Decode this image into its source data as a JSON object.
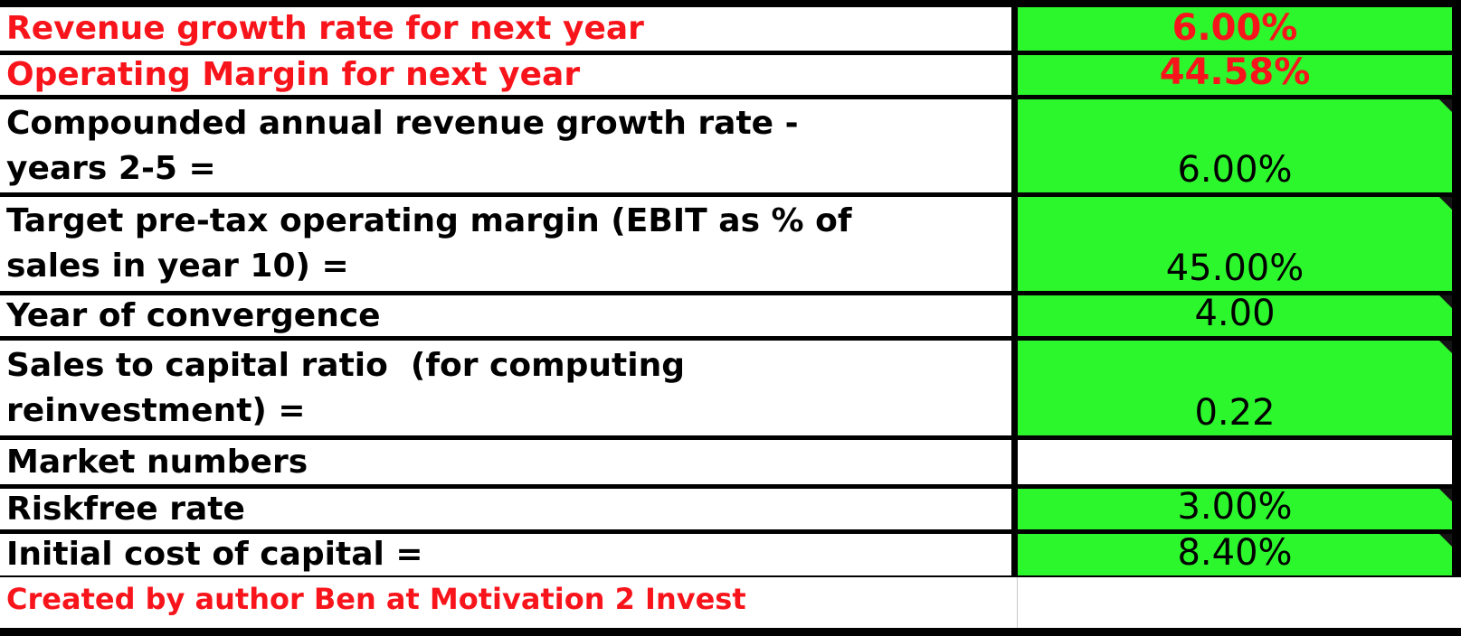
{
  "table": {
    "rows": [
      {
        "label": "Revenue growth rate for next year",
        "value": "6.00%"
      },
      {
        "label": "Operating Margin for next year",
        "value": "44.58%"
      },
      {
        "label": "Compounded annual revenue growth rate -\nyears 2-5 =",
        "value": "6.00%"
      },
      {
        "label": "Target pre-tax operating margin (EBIT as % of\nsales in year 10) =",
        "value": "45.00%"
      },
      {
        "label": "Year of convergence",
        "value": "4.00"
      },
      {
        "label": "Sales to capital ratio  (for computing\nreinvestment) =",
        "value": "0.22"
      },
      {
        "label": "Market numbers",
        "value": ""
      },
      {
        "label": "Riskfree rate",
        "value": "3.00%"
      },
      {
        "label": "Initial cost of capital =",
        "value": "8.40%"
      },
      {
        "label": "Created by author Ben at Motivation 2 Invest",
        "value": ""
      }
    ]
  },
  "colors": {
    "input_cell_green": "#2cf62c",
    "highlight_red": "#f8141b",
    "border_black": "#000000",
    "faint_gridline_gray": "#c8c8c8"
  },
  "icons": {
    "comment_marker": "corner-triangle"
  }
}
